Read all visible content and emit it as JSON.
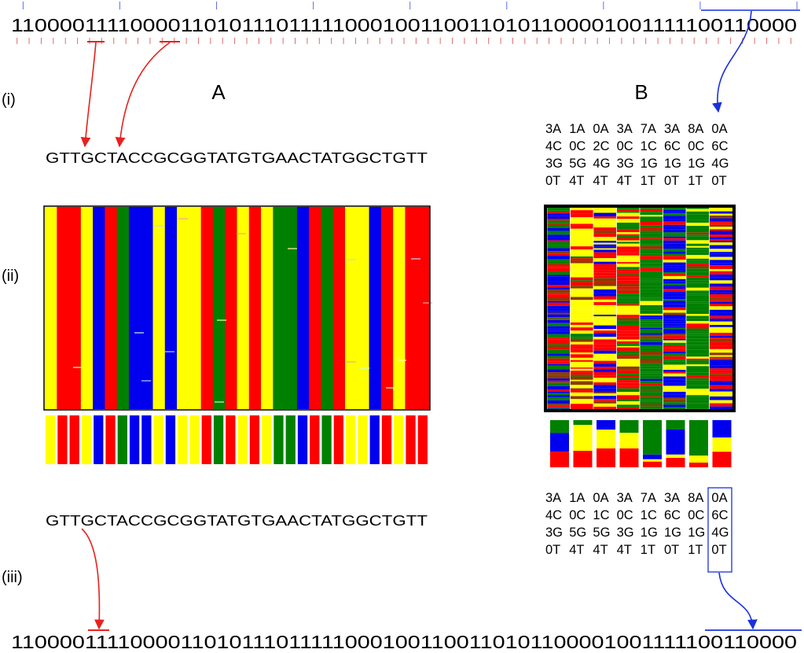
{
  "figure": {
    "bits_top": "11000011110000110101110111110001001100110101100001001111100110000",
    "bits_bottom": "11000011110000110101110111110001001100110101100001001111100110000",
    "row_labels": [
      "(i)",
      "(ii)",
      "(iii)"
    ],
    "panel_a": {
      "label": "A",
      "sequence_top": "GTTGCTACCGCGGTATGTGAACTATGGCTGTT",
      "sequence_bottom": "GTTGCTACCGCGGTATGTGAACTATGGCTGTT"
    },
    "panel_b": {
      "label": "B",
      "matrix_top": [
        [
          "3A",
          "1A",
          "0A",
          "3A",
          "7A",
          "3A",
          "8A",
          "0A"
        ],
        [
          "4C",
          "0C",
          "2C",
          "0C",
          "1C",
          "6C",
          "0C",
          "6C"
        ],
        [
          "3G",
          "5G",
          "4G",
          "3G",
          "1G",
          "1G",
          "1G",
          "4G"
        ],
        [
          "0T",
          "4T",
          "4T",
          "4T",
          "1T",
          "0T",
          "1T",
          "0T"
        ]
      ],
      "matrix_bottom": [
        [
          "3A",
          "1A",
          "0A",
          "3A",
          "7A",
          "3A",
          "8A",
          "0A"
        ],
        [
          "4C",
          "0C",
          "1C",
          "0C",
          "1C",
          "6C",
          "0C",
          "6C"
        ],
        [
          "3G",
          "5G",
          "5G",
          "3G",
          "1G",
          "1G",
          "1G",
          "4G"
        ],
        [
          "0T",
          "4T",
          "4T",
          "4T",
          "1T",
          "0T",
          "1T",
          "0T"
        ]
      ],
      "column_composition": [
        {
          "green": 0.27,
          "blue": 0.4,
          "yellow": 0.0,
          "red": 0.33
        },
        {
          "green": 0.1,
          "blue": 0.0,
          "yellow": 0.55,
          "red": 0.35
        },
        {
          "green": 0.0,
          "blue": 0.2,
          "yellow": 0.4,
          "red": 0.4
        },
        {
          "green": 0.27,
          "blue": 0.0,
          "yellow": 0.33,
          "red": 0.4
        },
        {
          "green": 0.73,
          "blue": 0.1,
          "yellow": 0.05,
          "red": 0.12
        },
        {
          "green": 0.2,
          "blue": 0.53,
          "yellow": 0.07,
          "red": 0.2
        },
        {
          "green": 0.75,
          "blue": 0.0,
          "yellow": 0.15,
          "red": 0.1
        },
        {
          "green": 0.0,
          "blue": 0.37,
          "yellow": 0.3,
          "red": 0.33
        }
      ]
    },
    "colors": {
      "A": "#00ff00",
      "C": "#0000ff",
      "G": "#ffff00",
      "T": "#ff0000",
      "adenine_bar": "#008000",
      "cytosine_bar": "#0000ee",
      "guanine_bar": "#ffff00",
      "thymine_bar": "#ff0000",
      "red_arrow": "#e8201f",
      "blue_arrow": "#1a2fe0",
      "tick_red": "#e36a6a",
      "tick_blue": "#5a6ff0"
    }
  }
}
